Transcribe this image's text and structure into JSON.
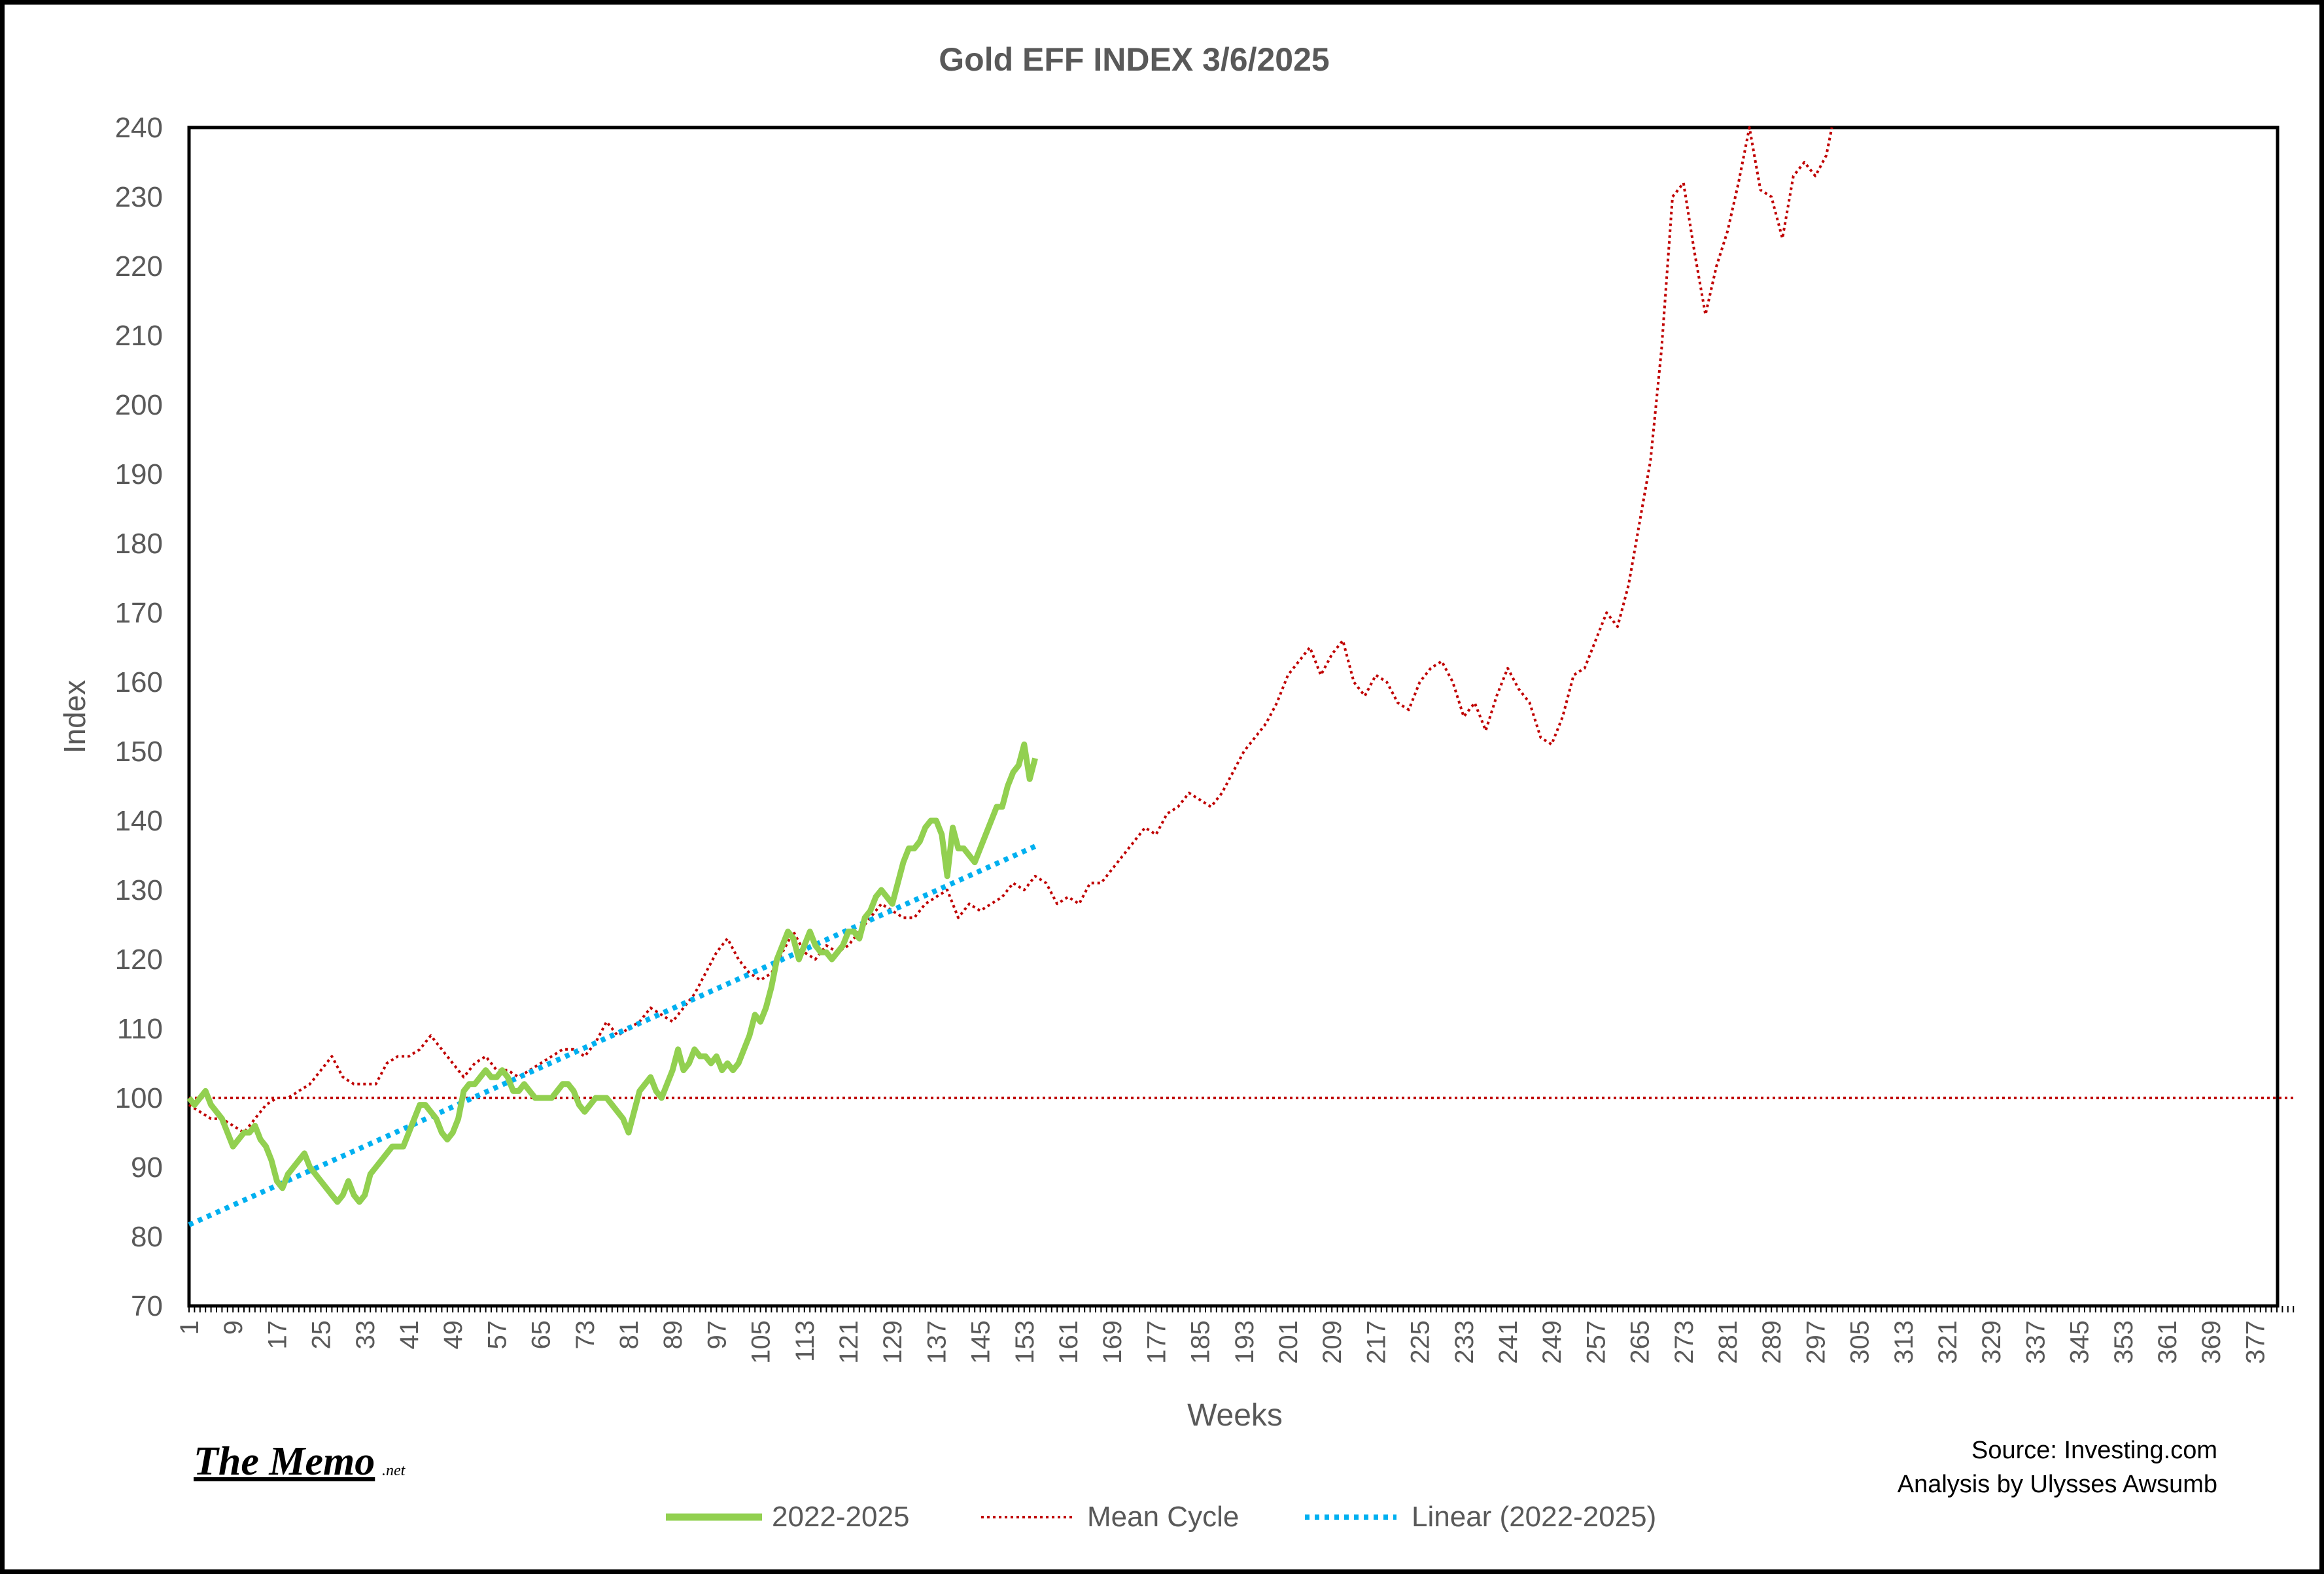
{
  "chart_data": {
    "type": "line",
    "title": "Gold EFF  INDEX 3/6/2025",
    "xlabel": "Weeks",
    "ylabel": "Index",
    "ylim": [
      70,
      240
    ],
    "xlim": [
      1,
      384
    ],
    "x_tick_labels": [
      "1",
      "9",
      "17",
      "25",
      "33",
      "41",
      "49",
      "57",
      "65",
      "73",
      "81",
      "89",
      "97",
      "105",
      "113",
      "121",
      "129",
      "137",
      "145",
      "153",
      "161",
      "169",
      "177",
      "185",
      "193",
      "201",
      "209",
      "217",
      "225",
      "233",
      "241",
      "249",
      "257",
      "265",
      "273",
      "281",
      "289",
      "297",
      "305",
      "313",
      "321",
      "329",
      "337",
      "345",
      "353",
      "361",
      "369",
      "377"
    ],
    "y_tick_labels": [
      "70",
      "80",
      "90",
      "100",
      "110",
      "120",
      "130",
      "140",
      "150",
      "160",
      "170",
      "180",
      "190",
      "200",
      "210",
      "220",
      "230",
      "240"
    ],
    "y_ticks": [
      70,
      80,
      90,
      100,
      110,
      120,
      130,
      140,
      150,
      160,
      170,
      180,
      190,
      200,
      210,
      220,
      230,
      240
    ],
    "grid": false,
    "legend_position": "bottom",
    "series": [
      {
        "name": "2022-2025",
        "color": "#92D050",
        "style": "solid",
        "points": [
          [
            1,
            100
          ],
          [
            2,
            99
          ],
          [
            3,
            100
          ],
          [
            4,
            101
          ],
          [
            5,
            99
          ],
          [
            6,
            98
          ],
          [
            7,
            97
          ],
          [
            8,
            95
          ],
          [
            9,
            93
          ],
          [
            10,
            94
          ],
          [
            11,
            95
          ],
          [
            12,
            95
          ],
          [
            13,
            96
          ],
          [
            14,
            94
          ],
          [
            15,
            93
          ],
          [
            16,
            91
          ],
          [
            17,
            88
          ],
          [
            18,
            87
          ],
          [
            19,
            89
          ],
          [
            20,
            90
          ],
          [
            21,
            91
          ],
          [
            22,
            92
          ],
          [
            23,
            90
          ],
          [
            24,
            89
          ],
          [
            25,
            88
          ],
          [
            26,
            87
          ],
          [
            27,
            86
          ],
          [
            28,
            85
          ],
          [
            29,
            86
          ],
          [
            30,
            88
          ],
          [
            31,
            86
          ],
          [
            32,
            85
          ],
          [
            33,
            86
          ],
          [
            34,
            89
          ],
          [
            35,
            90
          ],
          [
            36,
            91
          ],
          [
            37,
            92
          ],
          [
            38,
            93
          ],
          [
            39,
            93
          ],
          [
            40,
            93
          ],
          [
            41,
            95
          ],
          [
            42,
            97
          ],
          [
            43,
            99
          ],
          [
            44,
            99
          ],
          [
            45,
            98
          ],
          [
            46,
            97
          ],
          [
            47,
            95
          ],
          [
            48,
            94
          ],
          [
            49,
            95
          ],
          [
            50,
            97
          ],
          [
            51,
            101
          ],
          [
            52,
            102
          ],
          [
            53,
            102
          ],
          [
            54,
            103
          ],
          [
            55,
            104
          ],
          [
            56,
            103
          ],
          [
            57,
            103
          ],
          [
            58,
            104
          ],
          [
            59,
            103
          ],
          [
            60,
            101
          ],
          [
            61,
            101
          ],
          [
            62,
            102
          ],
          [
            63,
            101
          ],
          [
            64,
            100
          ],
          [
            65,
            100
          ],
          [
            66,
            100
          ],
          [
            67,
            100
          ],
          [
            68,
            101
          ],
          [
            69,
            102
          ],
          [
            70,
            102
          ],
          [
            71,
            101
          ],
          [
            72,
            99
          ],
          [
            73,
            98
          ],
          [
            74,
            99
          ],
          [
            75,
            100
          ],
          [
            76,
            100
          ],
          [
            77,
            100
          ],
          [
            78,
            99
          ],
          [
            79,
            98
          ],
          [
            80,
            97
          ],
          [
            81,
            95
          ],
          [
            82,
            98
          ],
          [
            83,
            101
          ],
          [
            84,
            102
          ],
          [
            85,
            103
          ],
          [
            86,
            101
          ],
          [
            87,
            100
          ],
          [
            88,
            102
          ],
          [
            89,
            104
          ],
          [
            90,
            107
          ],
          [
            91,
            104
          ],
          [
            92,
            105
          ],
          [
            93,
            107
          ],
          [
            94,
            106
          ],
          [
            95,
            106
          ],
          [
            96,
            105
          ],
          [
            97,
            106
          ],
          [
            98,
            104
          ],
          [
            99,
            105
          ],
          [
            100,
            104
          ],
          [
            101,
            105
          ],
          [
            102,
            107
          ],
          [
            103,
            109
          ],
          [
            104,
            112
          ],
          [
            105,
            111
          ],
          [
            106,
            113
          ],
          [
            107,
            116
          ],
          [
            108,
            120
          ],
          [
            109,
            122
          ],
          [
            110,
            124
          ],
          [
            111,
            123
          ],
          [
            112,
            120
          ],
          [
            113,
            122
          ],
          [
            114,
            124
          ],
          [
            115,
            122
          ],
          [
            116,
            121
          ],
          [
            117,
            121
          ],
          [
            118,
            120
          ],
          [
            119,
            121
          ],
          [
            120,
            122
          ],
          [
            121,
            124
          ],
          [
            122,
            124
          ],
          [
            123,
            123
          ],
          [
            124,
            126
          ],
          [
            125,
            127
          ],
          [
            126,
            129
          ],
          [
            127,
            130
          ],
          [
            128,
            129
          ],
          [
            129,
            128
          ],
          [
            130,
            131
          ],
          [
            131,
            134
          ],
          [
            132,
            136
          ],
          [
            133,
            136
          ],
          [
            134,
            137
          ],
          [
            135,
            139
          ],
          [
            136,
            140
          ],
          [
            137,
            140
          ],
          [
            138,
            138
          ],
          [
            139,
            132
          ],
          [
            140,
            139
          ],
          [
            141,
            136
          ],
          [
            142,
            136
          ],
          [
            143,
            135
          ],
          [
            144,
            134
          ],
          [
            145,
            136
          ],
          [
            146,
            138
          ],
          [
            147,
            140
          ],
          [
            148,
            142
          ],
          [
            149,
            142
          ],
          [
            150,
            145
          ],
          [
            151,
            147
          ],
          [
            152,
            148
          ],
          [
            153,
            151
          ],
          [
            154,
            146
          ],
          [
            155,
            149
          ]
        ]
      },
      {
        "name": "Mean Cycle",
        "color": "#C00000",
        "style": "dotted",
        "points": [
          [
            1,
            99
          ],
          [
            3,
            98
          ],
          [
            5,
            97
          ],
          [
            7,
            97
          ],
          [
            9,
            96
          ],
          [
            11,
            95
          ],
          [
            13,
            97
          ],
          [
            15,
            99
          ],
          [
            17,
            100
          ],
          [
            19,
            100
          ],
          [
            21,
            101
          ],
          [
            23,
            102
          ],
          [
            25,
            104
          ],
          [
            27,
            106
          ],
          [
            29,
            103
          ],
          [
            31,
            102
          ],
          [
            33,
            102
          ],
          [
            35,
            102
          ],
          [
            37,
            105
          ],
          [
            39,
            106
          ],
          [
            41,
            106
          ],
          [
            43,
            107
          ],
          [
            45,
            109
          ],
          [
            47,
            107
          ],
          [
            49,
            105
          ],
          [
            51,
            103
          ],
          [
            53,
            105
          ],
          [
            55,
            106
          ],
          [
            57,
            104
          ],
          [
            59,
            104
          ],
          [
            61,
            103
          ],
          [
            63,
            104
          ],
          [
            65,
            105
          ],
          [
            67,
            106
          ],
          [
            69,
            107
          ],
          [
            71,
            107
          ],
          [
            73,
            106
          ],
          [
            75,
            108
          ],
          [
            77,
            111
          ],
          [
            79,
            109
          ],
          [
            81,
            110
          ],
          [
            83,
            111
          ],
          [
            85,
            113
          ],
          [
            87,
            112
          ],
          [
            89,
            111
          ],
          [
            91,
            113
          ],
          [
            93,
            115
          ],
          [
            95,
            118
          ],
          [
            97,
            121
          ],
          [
            99,
            123
          ],
          [
            101,
            120
          ],
          [
            103,
            118
          ],
          [
            105,
            117
          ],
          [
            107,
            118
          ],
          [
            109,
            121
          ],
          [
            111,
            124
          ],
          [
            113,
            121
          ],
          [
            115,
            120
          ],
          [
            117,
            122
          ],
          [
            119,
            121
          ],
          [
            121,
            122
          ],
          [
            123,
            124
          ],
          [
            125,
            126
          ],
          [
            127,
            128
          ],
          [
            129,
            127
          ],
          [
            131,
            126
          ],
          [
            133,
            126
          ],
          [
            135,
            128
          ],
          [
            137,
            129
          ],
          [
            139,
            130
          ],
          [
            141,
            126
          ],
          [
            143,
            128
          ],
          [
            145,
            127
          ],
          [
            147,
            128
          ],
          [
            149,
            129
          ],
          [
            151,
            131
          ],
          [
            153,
            130
          ],
          [
            155,
            132
          ],
          [
            157,
            131
          ],
          [
            159,
            128
          ],
          [
            161,
            129
          ],
          [
            163,
            128
          ],
          [
            165,
            131
          ],
          [
            167,
            131
          ],
          [
            169,
            133
          ],
          [
            171,
            135
          ],
          [
            173,
            137
          ],
          [
            175,
            139
          ],
          [
            177,
            138
          ],
          [
            179,
            141
          ],
          [
            181,
            142
          ],
          [
            183,
            144
          ],
          [
            185,
            143
          ],
          [
            187,
            142
          ],
          [
            189,
            144
          ],
          [
            191,
            147
          ],
          [
            193,
            150
          ],
          [
            195,
            152
          ],
          [
            197,
            154
          ],
          [
            199,
            157
          ],
          [
            201,
            161
          ],
          [
            203,
            163
          ],
          [
            205,
            165
          ],
          [
            207,
            161
          ],
          [
            209,
            164
          ],
          [
            211,
            166
          ],
          [
            213,
            160
          ],
          [
            215,
            158
          ],
          [
            217,
            161
          ],
          [
            219,
            160
          ],
          [
            221,
            157
          ],
          [
            223,
            156
          ],
          [
            225,
            160
          ],
          [
            227,
            162
          ],
          [
            229,
            163
          ],
          [
            231,
            160
          ],
          [
            233,
            155
          ],
          [
            235,
            157
          ],
          [
            237,
            153
          ],
          [
            239,
            158
          ],
          [
            241,
            162
          ],
          [
            243,
            159
          ],
          [
            245,
            157
          ],
          [
            247,
            152
          ],
          [
            249,
            151
          ],
          [
            251,
            155
          ],
          [
            253,
            161
          ],
          [
            255,
            162
          ],
          [
            257,
            166
          ],
          [
            259,
            170
          ],
          [
            261,
            168
          ],
          [
            263,
            174
          ],
          [
            265,
            183
          ],
          [
            267,
            192
          ],
          [
            269,
            208
          ],
          [
            271,
            230
          ],
          [
            273,
            232
          ],
          [
            275,
            222
          ],
          [
            277,
            213
          ],
          [
            279,
            220
          ],
          [
            281,
            225
          ],
          [
            283,
            232
          ],
          [
            285,
            240
          ],
          [
            287,
            231
          ],
          [
            289,
            230
          ],
          [
            291,
            224
          ],
          [
            293,
            233
          ],
          [
            295,
            235
          ],
          [
            297,
            233
          ],
          [
            299,
            236
          ],
          [
            300,
            240
          ]
        ]
      },
      {
        "name": "Linear (2022-2025)",
        "color": "#00B0F0",
        "style": "dotted",
        "points": [
          [
            1,
            81.7
          ],
          [
            155,
            136.3
          ]
        ]
      },
      {
        "name": "",
        "color": "#C00000",
        "style": "dotted",
        "points": [
          [
            1,
            100
          ],
          [
            384,
            100
          ]
        ]
      }
    ]
  },
  "branding": {
    "logo": "The Memo",
    "logo_suffix": ".net",
    "source": "Source: Investing.com",
    "analysis": "Analysis by Ulysses Awsumb"
  }
}
